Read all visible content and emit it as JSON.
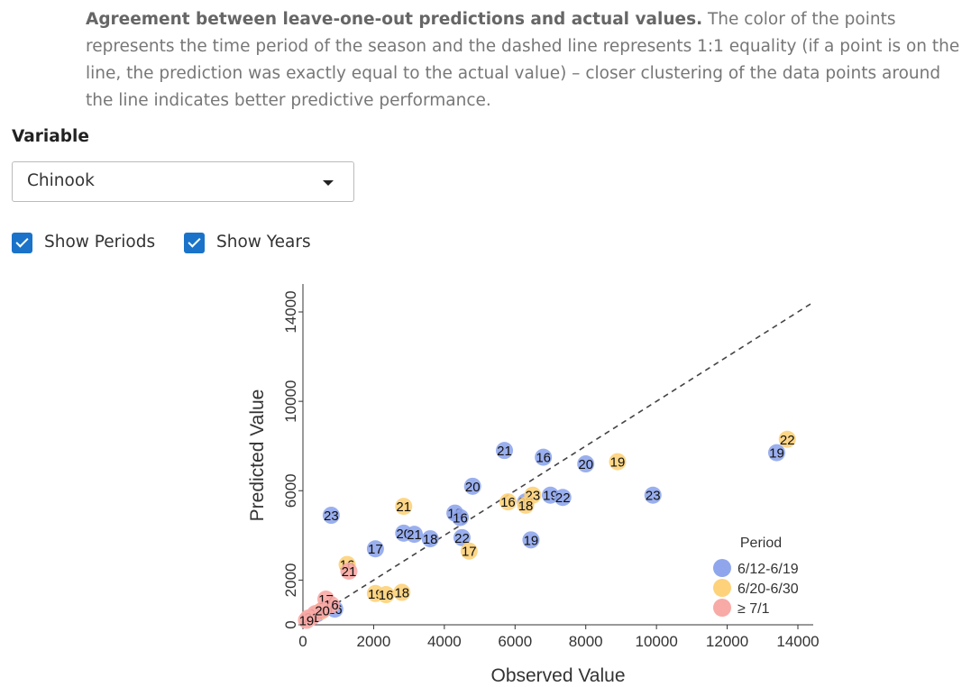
{
  "caption": {
    "bold": "Agreement between leave-one-out predictions and actual values.",
    "rest": " The color of the points represents the time period of the season and the dashed line represents 1:1 equality (if a point is on the line, the prediction was exactly equal to the actual value) – closer clustering of the data points around the line indicates better predictive performance."
  },
  "variable": {
    "label": "Variable",
    "selected": "Chinook"
  },
  "toggles": {
    "periods": "Show Periods",
    "years": "Show Years"
  },
  "colors": {
    "p1": "#8fa6ec",
    "p2": "#fdd27a",
    "p3": "#f8aaa6"
  },
  "chart_data": {
    "type": "scatter",
    "xlabel": "Observed Value",
    "ylabel": "Predicted Value",
    "xlim": [
      0,
      14000
    ],
    "ylim": [
      0,
      14000
    ],
    "xticks": [
      "0",
      "2000",
      "4000",
      "6000",
      "8000",
      "10000",
      "12000",
      "14000"
    ],
    "yticks": [
      "0",
      "2000",
      "6000",
      "10000",
      "14000"
    ],
    "reference_line": "1:1",
    "legend": {
      "title": "Period",
      "placement": "bottom-right",
      "entries": [
        {
          "label": "6/12-6/19",
          "color": "#8fa6ec"
        },
        {
          "label": "6/20-6/30",
          "color": "#fdd27a"
        },
        {
          "label": "≥ 7/1",
          "color": "#f8aaa6"
        }
      ]
    },
    "series": [
      {
        "period": "6/12-6/19",
        "color": "#8fa6ec",
        "points": [
          {
            "x": 5700,
            "y": 7800,
            "label": "21"
          },
          {
            "x": 6800,
            "y": 7500,
            "label": "16"
          },
          {
            "x": 8000,
            "y": 7200,
            "label": "20"
          },
          {
            "x": 13400,
            "y": 7700,
            "label": "19"
          },
          {
            "x": 4800,
            "y": 6200,
            "label": "20"
          },
          {
            "x": 7000,
            "y": 5800,
            "label": "19"
          },
          {
            "x": 7350,
            "y": 5700,
            "label": "22"
          },
          {
            "x": 9900,
            "y": 5800,
            "label": "23"
          },
          {
            "x": 6300,
            "y": 5500,
            "label": "21"
          },
          {
            "x": 800,
            "y": 4900,
            "label": "23"
          },
          {
            "x": 4300,
            "y": 5000,
            "label": "18"
          },
          {
            "x": 4450,
            "y": 4800,
            "label": "16"
          },
          {
            "x": 2850,
            "y": 4100,
            "label": "20"
          },
          {
            "x": 3150,
            "y": 4050,
            "label": "21"
          },
          {
            "x": 3600,
            "y": 3850,
            "label": "18"
          },
          {
            "x": 4500,
            "y": 3900,
            "label": "22"
          },
          {
            "x": 6450,
            "y": 3800,
            "label": "19"
          },
          {
            "x": 2050,
            "y": 3400,
            "label": "17"
          },
          {
            "x": 900,
            "y": 700,
            "label": "16"
          },
          {
            "x": 400,
            "y": 500,
            "label": "18"
          }
        ]
      },
      {
        "period": "6/20-6/30",
        "color": "#fdd27a",
        "points": [
          {
            "x": 13700,
            "y": 8300,
            "label": "22"
          },
          {
            "x": 8900,
            "y": 7300,
            "label": "19"
          },
          {
            "x": 2850,
            "y": 5300,
            "label": "21"
          },
          {
            "x": 6500,
            "y": 5800,
            "label": "23"
          },
          {
            "x": 5800,
            "y": 5500,
            "label": "16"
          },
          {
            "x": 6300,
            "y": 5350,
            "label": "18"
          },
          {
            "x": 4700,
            "y": 3300,
            "label": "17"
          },
          {
            "x": 1250,
            "y": 2700,
            "label": "16"
          },
          {
            "x": 2050,
            "y": 1400,
            "label": "19"
          },
          {
            "x": 2350,
            "y": 1350,
            "label": "16"
          },
          {
            "x": 2800,
            "y": 1450,
            "label": "18"
          },
          {
            "x": 500,
            "y": 600,
            "label": "20"
          }
        ]
      },
      {
        "period": "≥ 7/1",
        "color": "#f8aaa6",
        "points": [
          {
            "x": 1300,
            "y": 2400,
            "label": "21"
          },
          {
            "x": 650,
            "y": 1150,
            "label": "17"
          },
          {
            "x": 800,
            "y": 900,
            "label": "16"
          },
          {
            "x": 350,
            "y": 500,
            "label": "22"
          },
          {
            "x": 150,
            "y": 300,
            "label": "23"
          },
          {
            "x": 250,
            "y": 350,
            "label": "21"
          },
          {
            "x": 100,
            "y": 200,
            "label": "19"
          },
          {
            "x": 550,
            "y": 650,
            "label": "20"
          }
        ]
      }
    ]
  }
}
